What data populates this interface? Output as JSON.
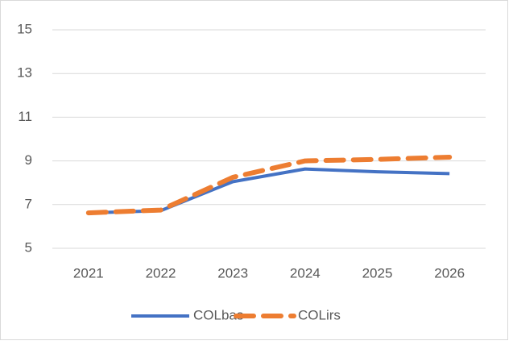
{
  "chart_data": {
    "type": "line",
    "categories": [
      "2021",
      "2022",
      "2023",
      "2024",
      "2025",
      "2026"
    ],
    "series": [
      {
        "name": "COLbas",
        "color": "#4472c4",
        "dash": false,
        "values": [
          6.62,
          6.72,
          8.05,
          8.63,
          8.5,
          8.42
        ]
      },
      {
        "name": "COLirs",
        "color": "#ed7d31",
        "dash": true,
        "values": [
          6.62,
          6.75,
          8.25,
          9.0,
          9.07,
          9.17
        ]
      }
    ],
    "ylim": [
      5,
      15
    ],
    "yticks": [
      5,
      7,
      9,
      11,
      13,
      15
    ],
    "grid": true,
    "legend": "bottom"
  }
}
